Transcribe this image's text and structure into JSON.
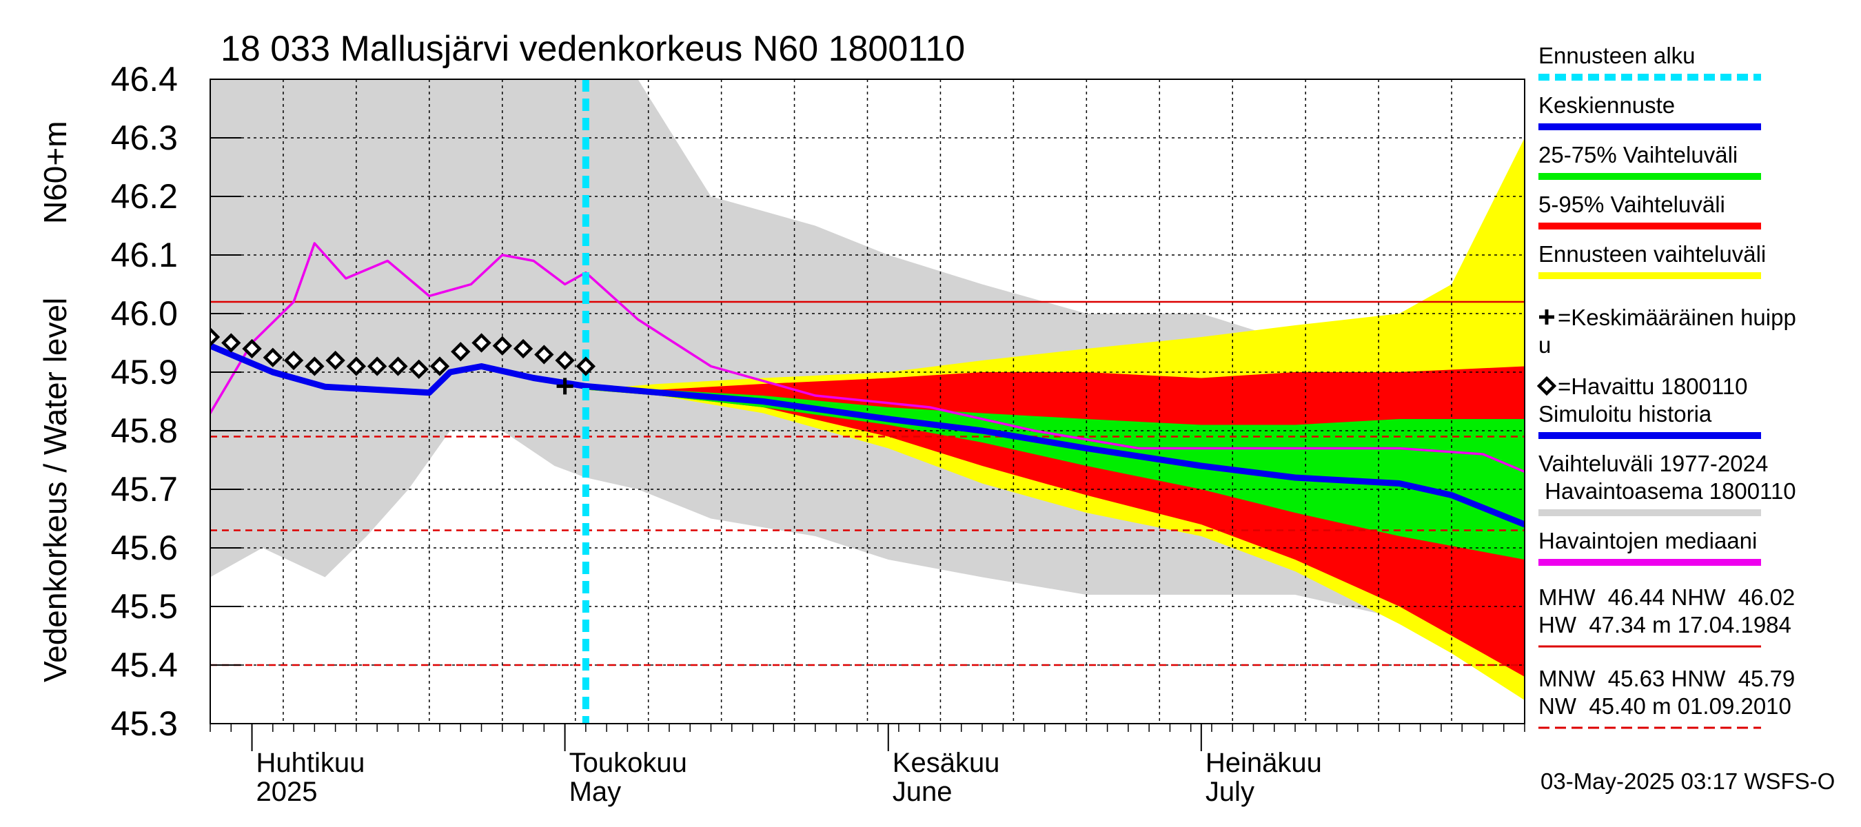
{
  "chart_data": {
    "type": "area",
    "title": "18 033 Mallusjärvi vedenkorkeus N60 1800110",
    "ylabel": "Vedenkorkeus / Water level",
    "ylabel_unit": "N60+m",
    "ylim": [
      45.3,
      46.4
    ],
    "yticks": [
      45.3,
      45.4,
      45.5,
      45.6,
      45.7,
      45.8,
      45.9,
      46.0,
      46.1,
      46.2,
      46.3,
      46.4
    ],
    "xlim": [
      "2025-03-28",
      "2025-08-01"
    ],
    "x_month_labels": [
      {
        "date": "2025-04-01",
        "fi": "Huhtikuu",
        "en": "2025"
      },
      {
        "date": "2025-05-01",
        "fi": "Toukokuu",
        "en": "May"
      },
      {
        "date": "2025-06-01",
        "fi": "Kesäkuu",
        "en": "June"
      },
      {
        "date": "2025-07-01",
        "fi": "Heinäkuu",
        "en": "July"
      }
    ],
    "grid": true,
    "legend_position": "right",
    "forecast_start": "2025-05-03",
    "reference_lines": [
      {
        "name": "NHW",
        "value": 46.02,
        "color": "#dd0000",
        "style": "solid"
      },
      {
        "name": "HNW",
        "value": 45.79,
        "color": "#dd0000",
        "style": "dashed"
      },
      {
        "name": "MNW",
        "value": 45.63,
        "color": "#dd0000",
        "style": "dashed"
      },
      {
        "name": "NW",
        "value": 45.4,
        "color": "#dd0000",
        "style": "dashed"
      }
    ],
    "series": [
      {
        "name": "Vaihteluväli 1977-2024 Havaintoasema 1800110",
        "role": "historical_range",
        "color": "#d3d3d3",
        "x": [
          "2025-03-28",
          "2025-04-02",
          "2025-04-08",
          "2025-04-12",
          "2025-04-16",
          "2025-04-20",
          "2025-04-25",
          "2025-04-30",
          "2025-05-03",
          "2025-05-08",
          "2025-05-15",
          "2025-05-25",
          "2025-06-01",
          "2025-06-10",
          "2025-06-20",
          "2025-07-01",
          "2025-07-10",
          "2025-07-20",
          "2025-08-01"
        ],
        "upper": [
          46.4,
          46.4,
          46.4,
          46.4,
          46.4,
          46.4,
          46.4,
          46.4,
          46.4,
          46.4,
          46.2,
          46.15,
          46.1,
          46.05,
          46.0,
          46.0,
          45.95,
          45.98,
          45.95
        ],
        "lower": [
          45.55,
          45.6,
          45.55,
          45.62,
          45.7,
          45.8,
          45.8,
          45.74,
          45.72,
          45.7,
          45.65,
          45.62,
          45.58,
          45.55,
          45.52,
          45.52,
          45.52,
          45.48,
          45.45
        ]
      },
      {
        "name": "Ennusteen vaihteluväli",
        "role": "forecast_range",
        "color": "#ffff00",
        "x": [
          "2025-05-03",
          "2025-05-10",
          "2025-05-20",
          "2025-06-01",
          "2025-06-10",
          "2025-06-20",
          "2025-07-01",
          "2025-07-10",
          "2025-07-20",
          "2025-07-25",
          "2025-08-01"
        ],
        "upper": [
          45.87,
          45.88,
          45.89,
          45.9,
          45.92,
          45.94,
          45.96,
          45.98,
          46.0,
          46.05,
          46.3
        ],
        "lower": [
          45.87,
          45.86,
          45.83,
          45.77,
          45.71,
          45.66,
          45.62,
          45.56,
          45.47,
          45.42,
          45.34
        ]
      },
      {
        "name": "5-95% Vaihteluväli",
        "role": "range_5_95",
        "color": "#ff0000",
        "x": [
          "2025-05-03",
          "2025-05-10",
          "2025-05-20",
          "2025-06-01",
          "2025-06-10",
          "2025-06-20",
          "2025-07-01",
          "2025-07-10",
          "2025-07-20",
          "2025-08-01"
        ],
        "upper": [
          45.87,
          45.87,
          45.88,
          45.89,
          45.9,
          45.9,
          45.89,
          45.9,
          45.9,
          45.91
        ],
        "lower": [
          45.87,
          45.86,
          45.84,
          45.79,
          45.74,
          45.69,
          45.64,
          45.58,
          45.5,
          45.38
        ]
      },
      {
        "name": "25-75% Vaihteluväli",
        "role": "range_25_75",
        "color": "#00ee00",
        "x": [
          "2025-05-03",
          "2025-05-10",
          "2025-05-20",
          "2025-06-01",
          "2025-06-10",
          "2025-06-20",
          "2025-07-01",
          "2025-07-10",
          "2025-07-20",
          "2025-08-01"
        ],
        "upper": [
          45.87,
          45.87,
          45.86,
          45.84,
          45.83,
          45.82,
          45.81,
          45.81,
          45.82,
          45.82
        ],
        "lower": [
          45.87,
          45.86,
          45.84,
          45.81,
          45.78,
          45.74,
          45.7,
          45.66,
          45.62,
          45.58
        ]
      },
      {
        "name": "Keskiennuste",
        "role": "mean_forecast",
        "color": "#0000ee",
        "x": [
          "2025-05-03",
          "2025-05-10",
          "2025-05-20",
          "2025-06-01",
          "2025-06-10",
          "2025-06-20",
          "2025-07-01",
          "2025-07-10",
          "2025-07-20",
          "2025-07-25",
          "2025-08-01"
        ],
        "y": [
          45.876,
          45.865,
          45.85,
          45.82,
          45.8,
          45.77,
          45.74,
          45.72,
          45.71,
          45.69,
          45.64
        ]
      },
      {
        "name": "Simuloitu historia",
        "role": "simulated_history",
        "color": "#0000ee",
        "x": [
          "2025-03-28",
          "2025-04-03",
          "2025-04-08",
          "2025-04-13",
          "2025-04-18",
          "2025-04-20",
          "2025-04-23",
          "2025-04-28",
          "2025-05-03"
        ],
        "y": [
          45.945,
          45.9,
          45.875,
          45.87,
          45.865,
          45.9,
          45.91,
          45.89,
          45.876
        ]
      },
      {
        "name": "Havaintojen mediaani",
        "role": "observation_median",
        "color": "#ee00ee",
        "x": [
          "2025-03-28",
          "2025-04-01",
          "2025-04-05",
          "2025-04-07",
          "2025-04-10",
          "2025-04-14",
          "2025-04-18",
          "2025-04-22",
          "2025-04-25",
          "2025-04-28",
          "2025-05-01",
          "2025-05-03",
          "2025-05-08",
          "2025-05-15",
          "2025-05-25",
          "2025-06-05",
          "2025-06-15",
          "2025-06-25",
          "2025-07-01",
          "2025-07-10",
          "2025-07-20",
          "2025-07-28",
          "2025-08-01"
        ],
        "y": [
          45.83,
          45.95,
          46.02,
          46.12,
          46.06,
          46.09,
          46.03,
          46.05,
          46.1,
          46.09,
          46.05,
          46.07,
          45.99,
          45.91,
          45.86,
          45.84,
          45.8,
          45.77,
          45.77,
          45.77,
          45.77,
          45.76,
          45.73
        ]
      },
      {
        "name": "Havaittu 1800110",
        "role": "observed",
        "marker": "diamond",
        "color": "#000000",
        "x": [
          "2025-03-28",
          "2025-03-30",
          "2025-04-01",
          "2025-04-03",
          "2025-04-05",
          "2025-04-07",
          "2025-04-09",
          "2025-04-11",
          "2025-04-13",
          "2025-04-15",
          "2025-04-17",
          "2025-04-19",
          "2025-04-21",
          "2025-04-23",
          "2025-04-25",
          "2025-04-27",
          "2025-04-29",
          "2025-05-01",
          "2025-05-03"
        ],
        "y": [
          45.96,
          45.95,
          45.94,
          45.925,
          45.92,
          45.91,
          45.92,
          45.91,
          45.91,
          45.91,
          45.905,
          45.91,
          45.935,
          45.95,
          45.945,
          45.94,
          45.93,
          45.92,
          45.91
        ]
      },
      {
        "name": "Keskimääräinen huippu",
        "role": "mean_peak",
        "marker": "plus",
        "color": "#000000",
        "x": [
          "2025-05-01"
        ],
        "y": [
          45.876
        ]
      }
    ],
    "legend_entries": [
      {
        "label": "Ennusteen alku",
        "color": "#00e5ff",
        "style": "dashed"
      },
      {
        "label": "Keskiennuste",
        "color": "#0000ee",
        "style": "solid"
      },
      {
        "label": "25-75% Vaihteluväli",
        "color": "#00ee00",
        "style": "solid"
      },
      {
        "label": "5-95% Vaihteluväli",
        "color": "#ff0000",
        "style": "solid"
      },
      {
        "label": "Ennusteen vaihteluväli",
        "color": "#ffff00",
        "style": "solid"
      },
      {
        "label_lines": [
          "=Keskimääräinen huipp",
          "u"
        ],
        "marker": "plus"
      },
      {
        "label": "=Havaittu 1800110",
        "marker": "diamond"
      },
      {
        "label": "Simuloitu historia",
        "color": "#0000ee",
        "style": "solid"
      },
      {
        "label_lines": [
          "Vaihteluväli 1977-2024",
          " Havaintoasema 1800110"
        ],
        "color": "#d3d3d3",
        "style": "solid"
      },
      {
        "label": "Havaintojen mediaani",
        "color": "#ee00ee",
        "style": "solid"
      }
    ],
    "stats": [
      {
        "lines": [
          "MHW  46.44 NHW  46.02",
          "HW  47.34 m 17.04.1984"
        ],
        "color": "#dd0000",
        "style": "solid"
      },
      {
        "lines": [
          "MNW  45.63 HNW  45.79",
          "NW  45.40 m 01.09.2010"
        ],
        "color": "#dd0000",
        "style": "dashed"
      }
    ],
    "footer": "03-May-2025 03:17 WSFS-O"
  }
}
